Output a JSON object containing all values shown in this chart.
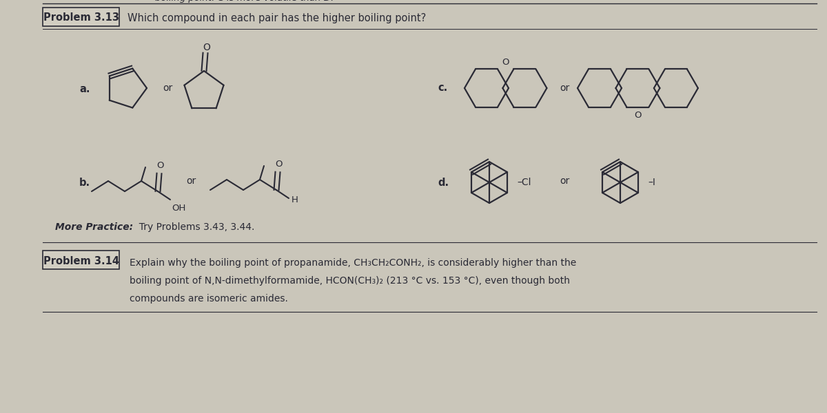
{
  "bg_color": "#cac6ba",
  "text_color": "#2a2a35",
  "top_text": "boiling point. C is more volatile than D.",
  "problem313_label": "Problem 3.13",
  "problem313_question": "Which compound in each pair has the higher boiling point?",
  "more_practice_bold": "More Practice:",
  "more_practice_rest": "  Try Problems 3.43, 3.44.",
  "problem314_label": "Problem 3.14",
  "problem314_line1": "Explain why the boiling point of propanamide, CH₃CH₂CONH₂, is considerably higher than the",
  "problem314_line2": "boiling point of N,N-dimethylformamide, HCON(CH₃)₂ (213 °C vs. 153 °C), even though both",
  "problem314_line3": "compounds are isomeric amides.",
  "label_a": "a.",
  "label_b": "b.",
  "label_c": "c.",
  "label_d": "d.",
  "or_text": "or"
}
